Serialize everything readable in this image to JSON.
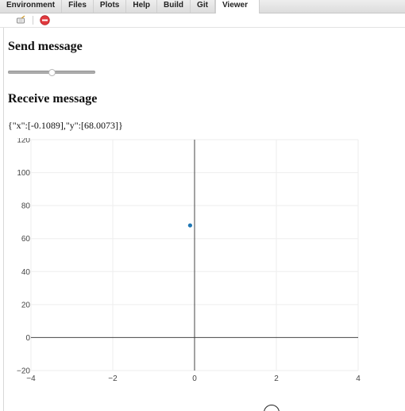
{
  "tabs": [
    {
      "label": "Environment",
      "active": false
    },
    {
      "label": "Files",
      "active": false
    },
    {
      "label": "Plots",
      "active": false
    },
    {
      "label": "Help",
      "active": false
    },
    {
      "label": "Build",
      "active": false
    },
    {
      "label": "Git",
      "active": false
    },
    {
      "label": "Viewer",
      "active": true
    }
  ],
  "toolbar": {
    "clear_icon": "broom-icon",
    "stop_icon": "stop-icon"
  },
  "send_section": {
    "heading": "Send message",
    "slider_value": 0.5
  },
  "receive_section": {
    "heading": "Receive message",
    "message": "{\"x\":[-0.1089],\"y\":[68.0073]}"
  },
  "chart_data": {
    "type": "scatter",
    "series": [
      {
        "x": [
          -0.1089
        ],
        "y": [
          68.0073
        ],
        "color": "#1f77b4"
      }
    ],
    "xlim": [
      -4,
      4
    ],
    "ylim": [
      -20,
      120
    ],
    "xticks": [
      -4,
      -2,
      0,
      2,
      4
    ],
    "yticks": [
      -20,
      0,
      20,
      40,
      60,
      80,
      100,
      120
    ],
    "grid": true,
    "zero_lines": true
  },
  "colors": {
    "marker": "#1f77b4",
    "grid": "#eeeeee",
    "zeroline": "#444444",
    "stop": "#e0393e"
  }
}
